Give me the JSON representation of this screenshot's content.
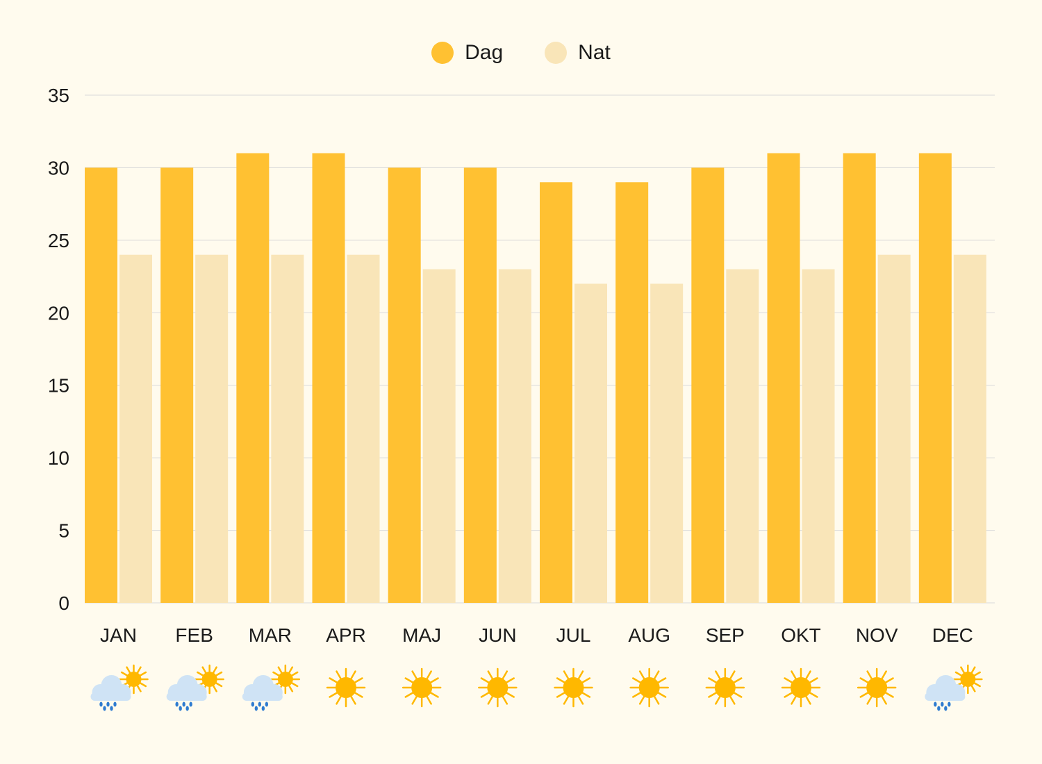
{
  "colors": {
    "background": "#FFFBEE",
    "day": "#FFC132",
    "night": "#F9E5B8",
    "grid": "#DADADA",
    "sun": "#FFB800",
    "cloud": "#CFE3F5",
    "rain": "#2E7BD0"
  },
  "legend": [
    {
      "name": "Dag",
      "color": "#FFC132"
    },
    {
      "name": "Nat",
      "color": "#F9E5B8"
    }
  ],
  "chart_data": {
    "type": "bar",
    "categories": [
      "JAN",
      "FEB",
      "MAR",
      "APR",
      "MAJ",
      "JUN",
      "JUL",
      "AUG",
      "SEP",
      "OKT",
      "NOV",
      "DEC"
    ],
    "series": [
      {
        "name": "Dag",
        "values": [
          30,
          30,
          31,
          31,
          30,
          30,
          29,
          29,
          30,
          31,
          31,
          31
        ]
      },
      {
        "name": "Nat",
        "values": [
          24,
          24,
          24,
          24,
          23,
          23,
          22,
          22,
          23,
          23,
          24,
          24
        ]
      }
    ],
    "ylim": [
      0,
      35
    ],
    "yticks": [
      0,
      5,
      10,
      15,
      20,
      25,
      30,
      35
    ],
    "grid": true,
    "legend_position": "top-center",
    "weather_icons": [
      "sun-behind-rain-cloud-icon",
      "sun-behind-rain-cloud-icon",
      "sun-behind-rain-cloud-icon",
      "sun-icon",
      "sun-icon",
      "sun-icon",
      "sun-icon",
      "sun-icon",
      "sun-icon",
      "sun-icon",
      "sun-icon",
      "sun-behind-rain-cloud-icon"
    ]
  }
}
